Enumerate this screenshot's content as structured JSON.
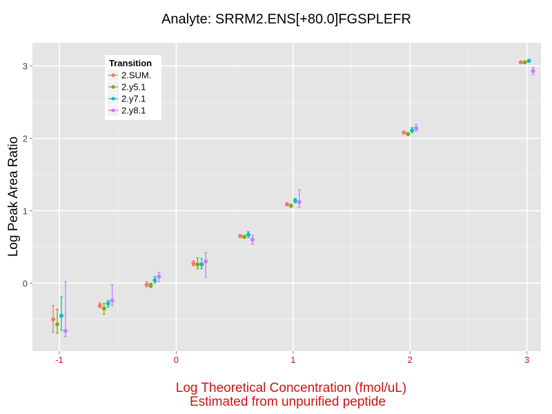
{
  "chart_data": {
    "type": "scatter",
    "title": "Analyte: SRRM2.ENS[+80.0]FGSPLEFR",
    "xlabel_line1": "Log Theoretical Concentration (fmol/uL)",
    "xlabel_line2": "Estimated from unpurified peptide",
    "ylabel": "Log Peak Area Ratio",
    "xlim": [
      -1.23,
      3.12
    ],
    "ylim": [
      -0.94,
      3.32
    ],
    "x_ticks": [
      -1,
      0,
      1,
      2,
      3
    ],
    "y_ticks": [
      0,
      1,
      2,
      3
    ],
    "x_tick_labels": [
      "-1",
      "0",
      "1",
      "2",
      "3"
    ],
    "y_tick_labels": [
      "0",
      "1",
      "2",
      "3"
    ],
    "grid": true,
    "legend_title": "Transition",
    "legend_position": "top-left",
    "colors": {
      "panel": "#e5e5e5",
      "grid_major": "#ffffff",
      "grid_minor": "#f2f2f2",
      "x_axis_text": "#d11010",
      "y_axis_text": "#444444"
    },
    "series": [
      {
        "name": "2.SUM.",
        "color": "#f8766d",
        "points": [
          {
            "x": -1.0,
            "y": -0.5,
            "lo": -0.68,
            "hi": -0.31
          },
          {
            "x": -0.6,
            "y": -0.31,
            "lo": -0.34,
            "hi": -0.27
          },
          {
            "x": -0.2,
            "y": -0.02,
            "lo": -0.05,
            "hi": 0.02
          },
          {
            "x": 0.2,
            "y": 0.27,
            "lo": 0.24,
            "hi": 0.31
          },
          {
            "x": 0.6,
            "y": 0.65,
            "lo": 0.63,
            "hi": 0.67
          },
          {
            "x": 1.0,
            "y": 1.09,
            "lo": 1.07,
            "hi": 1.11
          },
          {
            "x": 2.0,
            "y": 2.08,
            "lo": 2.06,
            "hi": 2.1
          },
          {
            "x": 3.0,
            "y": 3.05,
            "lo": 3.04,
            "hi": 3.06
          }
        ]
      },
      {
        "name": "2.y5.1",
        "color": "#7cae00",
        "points": [
          {
            "x": -1.0,
            "y": -0.57,
            "lo": -0.69,
            "hi": -0.36
          },
          {
            "x": -0.6,
            "y": -0.35,
            "lo": -0.43,
            "hi": -0.28
          },
          {
            "x": -0.2,
            "y": -0.03,
            "lo": -0.06,
            "hi": 0.0
          },
          {
            "x": 0.2,
            "y": 0.26,
            "lo": 0.2,
            "hi": 0.35
          },
          {
            "x": 0.6,
            "y": 0.64,
            "lo": 0.62,
            "hi": 0.66
          },
          {
            "x": 1.0,
            "y": 1.07,
            "lo": 1.05,
            "hi": 1.09
          },
          {
            "x": 2.0,
            "y": 2.06,
            "lo": 2.04,
            "hi": 2.08
          },
          {
            "x": 3.0,
            "y": 3.05,
            "lo": 3.04,
            "hi": 3.06
          }
        ]
      },
      {
        "name": "2.y7.1",
        "color": "#00bfc4",
        "points": [
          {
            "x": -1.0,
            "y": -0.45,
            "lo": -0.65,
            "hi": -0.19
          },
          {
            "x": -0.6,
            "y": -0.28,
            "lo": -0.33,
            "hi": -0.24
          },
          {
            "x": -0.2,
            "y": 0.04,
            "lo": 0.0,
            "hi": 0.09
          },
          {
            "x": 0.2,
            "y": 0.26,
            "lo": 0.2,
            "hi": 0.34
          },
          {
            "x": 0.6,
            "y": 0.67,
            "lo": 0.63,
            "hi": 0.71
          },
          {
            "x": 1.0,
            "y": 1.14,
            "lo": 1.11,
            "hi": 1.17
          },
          {
            "x": 2.0,
            "y": 2.11,
            "lo": 2.08,
            "hi": 2.15
          },
          {
            "x": 3.0,
            "y": 3.07,
            "lo": 3.06,
            "hi": 3.08
          }
        ]
      },
      {
        "name": "2.y8.1",
        "color": "#c77cff",
        "points": [
          {
            "x": -1.0,
            "y": -0.66,
            "lo": -0.74,
            "hi": 0.02
          },
          {
            "x": -0.6,
            "y": -0.24,
            "lo": -0.31,
            "hi": -0.02
          },
          {
            "x": -0.2,
            "y": 0.09,
            "lo": 0.02,
            "hi": 0.15
          },
          {
            "x": 0.2,
            "y": 0.3,
            "lo": 0.08,
            "hi": 0.42
          },
          {
            "x": 0.6,
            "y": 0.6,
            "lo": 0.54,
            "hi": 0.66
          },
          {
            "x": 1.0,
            "y": 1.12,
            "lo": 1.05,
            "hi": 1.29
          },
          {
            "x": 2.0,
            "y": 2.14,
            "lo": 2.1,
            "hi": 2.19
          },
          {
            "x": 3.0,
            "y": 2.93,
            "lo": 2.88,
            "hi": 2.98
          }
        ]
      }
    ]
  }
}
